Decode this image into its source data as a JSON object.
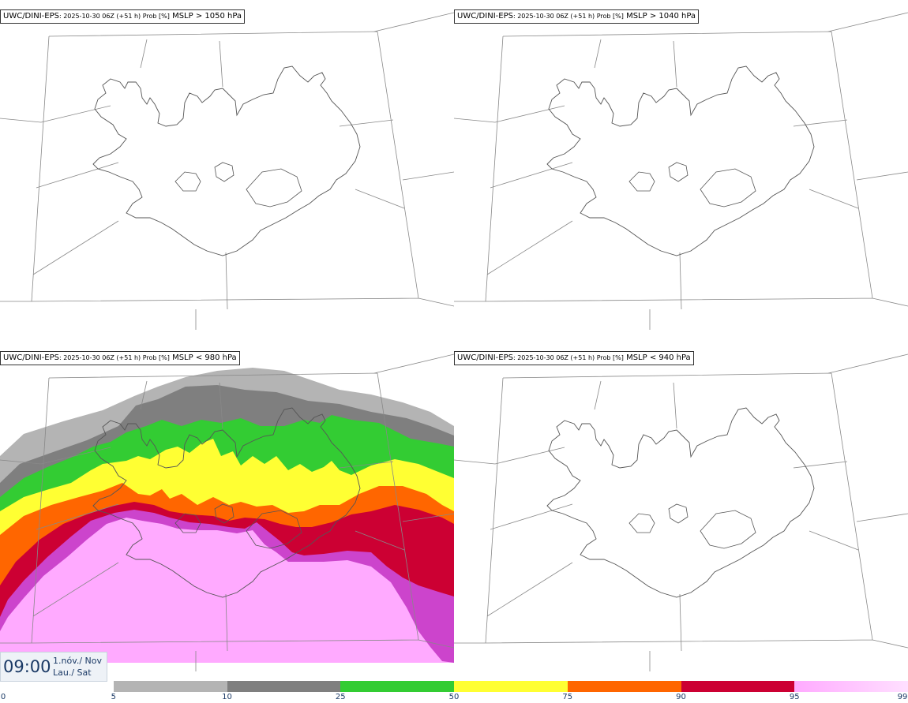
{
  "panels": [
    {
      "model": "UWC/DINI-EPS",
      "meta": ": 2025-10-30 06Z (+51 h) Prob [%]",
      "threshold": "MSLP > 1050 hPa",
      "filled": false
    },
    {
      "model": "UWC/DINI-EPS",
      "meta": ": 2025-10-30 06Z (+51 h) Prob [%]",
      "threshold": "MSLP > 1040 hPa",
      "filled": false
    },
    {
      "model": "UWC/DINI-EPS",
      "meta": ": 2025-10-30 06Z (+51 h) Prob [%]",
      "threshold": "MSLP < 980 hPa",
      "filled": true
    },
    {
      "model": "UWC/DINI-EPS",
      "meta": ": 2025-10-30 06Z (+51 h) Prob [%]",
      "threshold": "MSLP < 940 hPa",
      "filled": false
    }
  ],
  "valid_time": {
    "time": "09:00",
    "date_line1": "1.nóv./ Nov",
    "date_line2": "Lau./ Sat"
  },
  "colorbar": {
    "labels": [
      "0",
      "5",
      "10",
      "25",
      "50",
      "75",
      "90",
      "95",
      "99"
    ],
    "colors": [
      "#ffffff",
      "#b4b4b4",
      "#7f7f7f",
      "#33cc33",
      "#ffff33",
      "#ff6600",
      "#cc0033",
      "#cc44cc",
      "#ffaaff"
    ]
  }
}
